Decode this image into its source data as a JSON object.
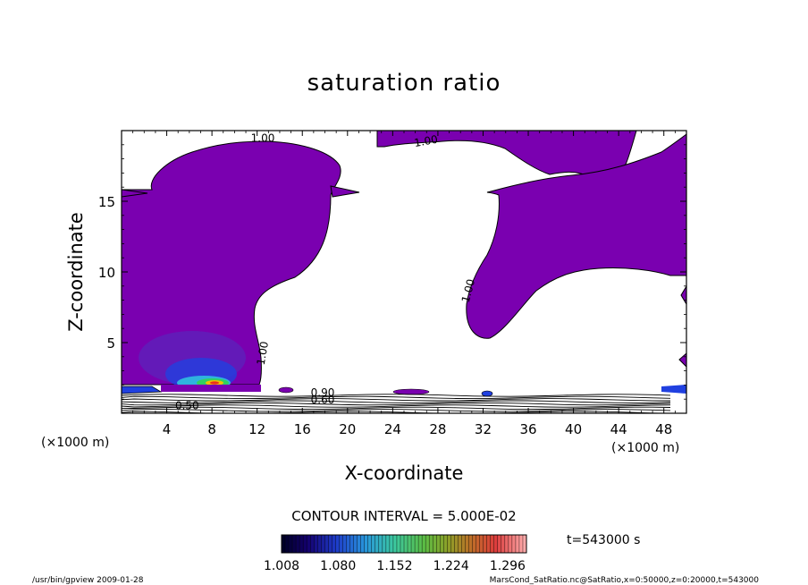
{
  "chart_data": {
    "type": "contour",
    "title": "saturation ratio",
    "xlabel": "X-coordinate",
    "ylabel": "Z-coordinate",
    "x_unit": "(×1000 m)",
    "z_unit": "(×1000 m)",
    "xlim": [
      0,
      50
    ],
    "ylim": [
      0,
      20
    ],
    "x_ticks": [
      4,
      8,
      12,
      16,
      20,
      24,
      28,
      32,
      36,
      40,
      44,
      48
    ],
    "y_ticks": [
      5,
      10,
      15
    ],
    "contour_labels": [
      {
        "text": "1.00",
        "x": 12.5,
        "z": 19.2
      },
      {
        "text": "1.00",
        "x": 27.0,
        "z": 19.0
      },
      {
        "text": "1.00",
        "x": 31.0,
        "z": 8.6
      },
      {
        "text": "1.00",
        "x": 12.8,
        "z": 4.2
      },
      {
        "text": "0.90",
        "x": 17.8,
        "z": 1.2
      },
      {
        "text": "0.60",
        "x": 17.8,
        "z": 0.7
      },
      {
        "text": "0.50",
        "x": 5.8,
        "z": 0.3
      }
    ],
    "contour_interval": "CONTOUR INTERVAL = 5.000E-02",
    "colorbar": {
      "ticks": [
        "1.008",
        "1.080",
        "1.152",
        "1.224",
        "1.296"
      ],
      "min": 1.008,
      "max": 1.32
    },
    "time_label": "t=543000 s"
  },
  "footer": {
    "left": "/usr/bin/gpview  2009-01-28",
    "right": "MarsCond_SatRatio.nc@SatRatio,x=0:50000,z=0:20000,t=543000"
  },
  "colors": {
    "fill": "#7a00b0",
    "hot_core": "#e83020",
    "warm": "#f0c000",
    "mid": "#30d060",
    "cool": "#2040e0"
  }
}
